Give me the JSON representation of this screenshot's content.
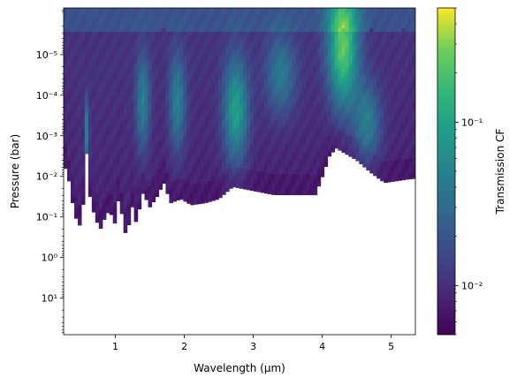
{
  "chart_data": {
    "type": "heatmap",
    "xlabel": "Wavelength (μm)",
    "ylabel": "Pressure (bar)",
    "xlim": [
      0.25,
      5.35
    ],
    "ylim_log10": [
      1.9,
      -6.15
    ],
    "y_scale": "log",
    "y_inverted": true,
    "x_ticks": [
      {
        "value": 1,
        "label": "1"
      },
      {
        "value": 2,
        "label": "2"
      },
      {
        "value": 3,
        "label": "3"
      },
      {
        "value": 4,
        "label": "4"
      },
      {
        "value": 5,
        "label": "5"
      }
    ],
    "y_ticks": [
      {
        "exp": -5,
        "label": "10⁻⁵"
      },
      {
        "exp": -4,
        "label": "10⁻⁴"
      },
      {
        "exp": -3,
        "label": "10⁻³"
      },
      {
        "exp": -2,
        "label": "10⁻²"
      },
      {
        "exp": -1,
        "label": "10⁻¹"
      },
      {
        "exp": 0,
        "label": "10⁰"
      },
      {
        "exp": 1,
        "label": "10¹"
      }
    ],
    "colorbar": {
      "label": "Transmission CF",
      "scale": "log",
      "colormap": "viridis",
      "range": [
        0.005,
        0.5
      ],
      "major_ticks": [
        {
          "value": 0.01,
          "label": "10⁻²"
        },
        {
          "value": 0.1,
          "label": "10⁻¹"
        }
      ]
    },
    "bottom_edge_log10_pressure": [
      {
        "x": 0.3,
        "p": -2.2
      },
      {
        "x": 0.36,
        "p": -1.5
      },
      {
        "x": 0.42,
        "p": -1.0
      },
      {
        "x": 0.48,
        "p": -0.8
      },
      {
        "x": 0.53,
        "p": -1.3
      },
      {
        "x": 0.58,
        "p": -2.6
      },
      {
        "x": 0.62,
        "p": -1.6
      },
      {
        "x": 0.7,
        "p": -1.0
      },
      {
        "x": 0.78,
        "p": -0.7
      },
      {
        "x": 0.85,
        "p": -1.0
      },
      {
        "x": 0.92,
        "p": -1.2
      },
      {
        "x": 0.98,
        "p": -0.75
      },
      {
        "x": 1.05,
        "p": -1.5
      },
      {
        "x": 1.1,
        "p": -1.0
      },
      {
        "x": 1.15,
        "p": -0.55
      },
      {
        "x": 1.2,
        "p": -0.85
      },
      {
        "x": 1.25,
        "p": -1.3
      },
      {
        "x": 1.3,
        "p": -0.85
      },
      {
        "x": 1.4,
        "p": -1.6
      },
      {
        "x": 1.5,
        "p": -1.25
      },
      {
        "x": 1.6,
        "p": -1.5
      },
      {
        "x": 1.7,
        "p": -1.85
      },
      {
        "x": 1.8,
        "p": -1.35
      },
      {
        "x": 1.95,
        "p": -1.45
      },
      {
        "x": 2.1,
        "p": -1.3
      },
      {
        "x": 2.3,
        "p": -1.35
      },
      {
        "x": 2.5,
        "p": -1.45
      },
      {
        "x": 2.7,
        "p": -1.75
      },
      {
        "x": 3.0,
        "p": -1.65
      },
      {
        "x": 3.3,
        "p": -1.55
      },
      {
        "x": 3.6,
        "p": -1.55
      },
      {
        "x": 3.9,
        "p": -1.55
      },
      {
        "x": 4.0,
        "p": -2.0
      },
      {
        "x": 4.1,
        "p": -2.5
      },
      {
        "x": 4.2,
        "p": -2.7
      },
      {
        "x": 4.3,
        "p": -2.6
      },
      {
        "x": 4.5,
        "p": -2.4
      },
      {
        "x": 4.7,
        "p": -2.1
      },
      {
        "x": 4.9,
        "p": -1.85
      },
      {
        "x": 5.1,
        "p": -1.9
      },
      {
        "x": 5.3,
        "p": -1.95
      }
    ],
    "emission_peaks": [
      {
        "x": 0.59,
        "width": 0.03,
        "p_center": -3.0,
        "p_spread": 0.9,
        "intensity": 0.45
      },
      {
        "x": 1.4,
        "width": 0.1,
        "p_center": -3.8,
        "p_spread": 1.2,
        "intensity": 0.35
      },
      {
        "x": 1.9,
        "width": 0.12,
        "p_center": -3.8,
        "p_spread": 1.2,
        "intensity": 0.35
      },
      {
        "x": 2.75,
        "width": 0.18,
        "p_center": -3.6,
        "p_spread": 1.3,
        "intensity": 0.5
      },
      {
        "x": 3.4,
        "width": 0.22,
        "p_center": -4.5,
        "p_spread": 1.0,
        "intensity": 0.3
      },
      {
        "x": 4.3,
        "width": 0.22,
        "p_center": -5.2,
        "p_spread": 1.5,
        "intensity": 0.7
      },
      {
        "x": 4.65,
        "width": 0.2,
        "p_center": -3.3,
        "p_spread": 1.0,
        "intensity": 0.35
      }
    ]
  }
}
